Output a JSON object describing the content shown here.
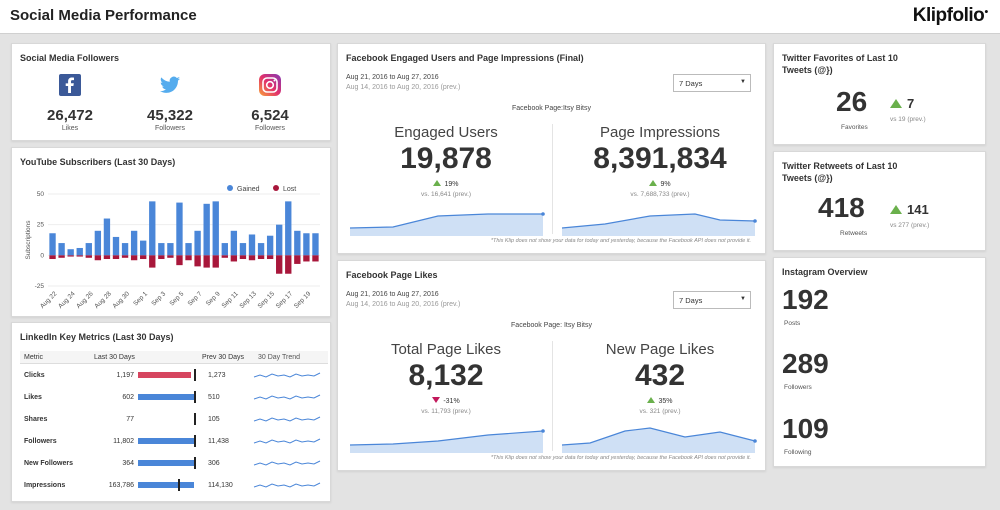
{
  "header": {
    "title": "Social Media Performance",
    "logo": "Klipfolio"
  },
  "followers": {
    "title": "Social Media Followers",
    "items": [
      {
        "icon": "facebook-icon",
        "value": "26,472",
        "label": "Likes"
      },
      {
        "icon": "twitter-icon",
        "value": "45,322",
        "label": "Followers"
      },
      {
        "icon": "instagram-icon",
        "value": "6,524",
        "label": "Followers"
      }
    ]
  },
  "youtube": {
    "title": "YouTube Subscribers (Last 30 Days)",
    "legend": [
      "Gained",
      "Lost"
    ],
    "ylabel": "Subscriptions",
    "colors": {
      "gained": "#4a86d8",
      "lost": "#a8173b"
    }
  },
  "chart_data": {
    "type": "bar",
    "title": "YouTube Subscribers (Last 30 Days)",
    "ylabel": "Subscriptions",
    "ylim": [
      -25,
      50
    ],
    "yticks": [
      50,
      25,
      0,
      -25
    ],
    "tick_labels": [
      "Aug 22",
      "Aug 24",
      "Aug 26",
      "Aug 28",
      "Aug 30",
      "Sep 1",
      "Sep 3",
      "Sep 5",
      "Sep 7",
      "Sep 9",
      "Sep 11",
      "Sep 13",
      "Sep 15",
      "Sep 17",
      "Sep 19"
    ],
    "series": [
      {
        "name": "Gained",
        "values": [
          18,
          10,
          5,
          6,
          10,
          20,
          30,
          15,
          10,
          20,
          12,
          44,
          10,
          10,
          43,
          10,
          20,
          42,
          44,
          10,
          20,
          10,
          17,
          10,
          16,
          25,
          44,
          20,
          18,
          18
        ]
      },
      {
        "name": "Lost",
        "values": [
          -3,
          -2,
          -1,
          -1,
          -2,
          -4,
          -3,
          -3,
          -2,
          -4,
          -3,
          -10,
          -3,
          -2,
          -8,
          -4,
          -9,
          -10,
          -10,
          -2,
          -5,
          -3,
          -4,
          -3,
          -3,
          -15,
          -15,
          -7,
          -5,
          -5
        ]
      }
    ]
  },
  "linkedin": {
    "title": "LinkedIn Key Metrics (Last 30 Days)",
    "headers": [
      "Metric",
      "Last 30 Days",
      "Prev 30 Days",
      "30 Day Trend"
    ],
    "rows": [
      {
        "metric": "Clicks",
        "last": "1,197",
        "prev": "1,273",
        "bar": 0.94,
        "color": "#d6455f"
      },
      {
        "metric": "Likes",
        "last": "602",
        "prev": "510",
        "bar": 1.0,
        "color": "#4a86d8"
      },
      {
        "metric": "Shares",
        "last": "77",
        "prev": "105",
        "bar": 0.0,
        "color": "#4a86d8"
      },
      {
        "metric": "Followers",
        "last": "11,802",
        "prev": "11,438",
        "bar": 1.0,
        "color": "#4a86d8"
      },
      {
        "metric": "New Followers",
        "last": "364",
        "prev": "306",
        "bar": 1.0,
        "color": "#4a86d8"
      },
      {
        "metric": "Impressions",
        "last": "163,786",
        "prev": "114,130",
        "bar": 1.0,
        "color": "#4a86d8"
      }
    ]
  },
  "fb_engaged": {
    "title": "Facebook Engaged Users and Page Impressions (Final)",
    "date_range": "Aug 21, 2016 to Aug 27, 2016",
    "prev_range": "Aug 14, 2016 to Aug 20, 2016 (prev.)",
    "select": "7 Days",
    "page_label": "Facebook Page:Itsy Bitsy",
    "left": {
      "label": "Engaged Users",
      "value": "19,878",
      "change": "19%",
      "prev": "vs. 16,641 (prev.)"
    },
    "right": {
      "label": "Page Impressions",
      "value": "8,391,834",
      "change": "9%",
      "prev": "vs. 7,688,733 (prev.)"
    },
    "note": "*This Klip does not show your data for today and yesterday, because the Facebook API does not provide it."
  },
  "fb_likes": {
    "title": "Facebook Page Likes",
    "date_range": "Aug 21, 2016 to Aug 27, 2016",
    "prev_range": "Aug 14, 2016 to Aug 20, 2016 (prev.)",
    "select": "7 Days",
    "page_label": "Facebook Page: Itsy Bitsy",
    "left": {
      "label": "Total Page Likes",
      "value": "8,132",
      "change": "-31%",
      "prev": "vs. 11,793 (prev.)"
    },
    "right": {
      "label": "New Page Likes",
      "value": "432",
      "change": "35%",
      "prev": "vs. 321 (prev.)"
    },
    "note": "*This Klip does not show your data for today and yesterday, because the Facebook API does not provide it."
  },
  "tw_fav": {
    "title": "Twitter Favorites of Last 10 Tweets (@})",
    "value": "26",
    "label": "Favorites",
    "change": "7",
    "vs": "vs 19 (prev.)"
  },
  "tw_rt": {
    "title": "Twitter Retweets of Last 10 Tweets (@})",
    "value": "418",
    "label": "Retweets",
    "change": "141",
    "vs": "vs 277 (prev.)"
  },
  "instagram": {
    "title": "Instagram Overview",
    "items": [
      {
        "value": "192",
        "label": "Posts"
      },
      {
        "value": "289",
        "label": "Followers"
      },
      {
        "value": "109",
        "label": "Following"
      }
    ]
  }
}
